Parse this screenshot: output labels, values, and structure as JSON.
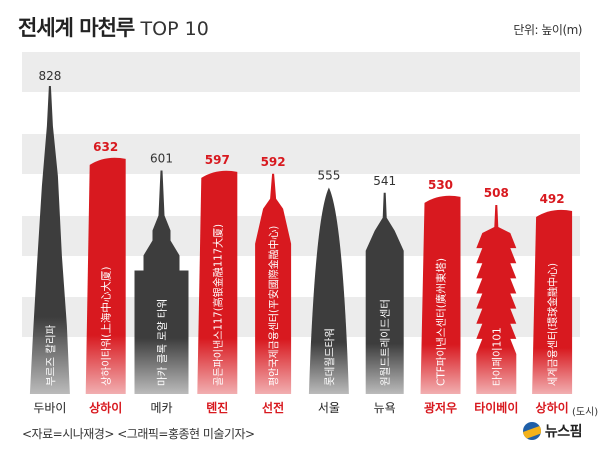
{
  "header": {
    "title_bold": "전세계 마천루",
    "title_sub": "TOP 10",
    "unit": "단위: 높이(m)"
  },
  "footer": {
    "source": "<자료=시나재경> <그래픽=홍종현 미술기자>",
    "logo": "뉴스핌",
    "city_suffix": "(도시)"
  },
  "colors": {
    "gray": "#3d3d3d",
    "red": "#d8191f",
    "band": "#ececec"
  },
  "chart_data": {
    "type": "bar",
    "title": "전세계 마천루 TOP 10",
    "ylabel": "높이(m)",
    "ylim": [
      0,
      830
    ],
    "categories": [
      "두바이",
      "상하이",
      "메카",
      "톈진",
      "선전",
      "서울",
      "뉴욕",
      "광저우",
      "타이베이",
      "상하이"
    ],
    "names": [
      "부르즈 칼리파",
      "상하이타워(上海中心大厦)",
      "마카 클록 로얄 타워",
      "골든파이낸스117(高银金融117大厦)",
      "평안국제금융센터(平安國際金融中心)",
      "롯데월드타워",
      "원월드트레이드센터",
      "CTF파이낸스센터(廣州東塔)",
      "타이페이101",
      "세계금융센터(環球金融中心)"
    ],
    "values": [
      828,
      632,
      601,
      597,
      592,
      555,
      541,
      530,
      508,
      492
    ],
    "value_labels": [
      "828",
      "632",
      "601",
      "597",
      "592",
      "555",
      "541",
      "530",
      "508",
      "492"
    ],
    "highlight": [
      false,
      true,
      false,
      true,
      true,
      false,
      false,
      true,
      true,
      true
    ]
  }
}
